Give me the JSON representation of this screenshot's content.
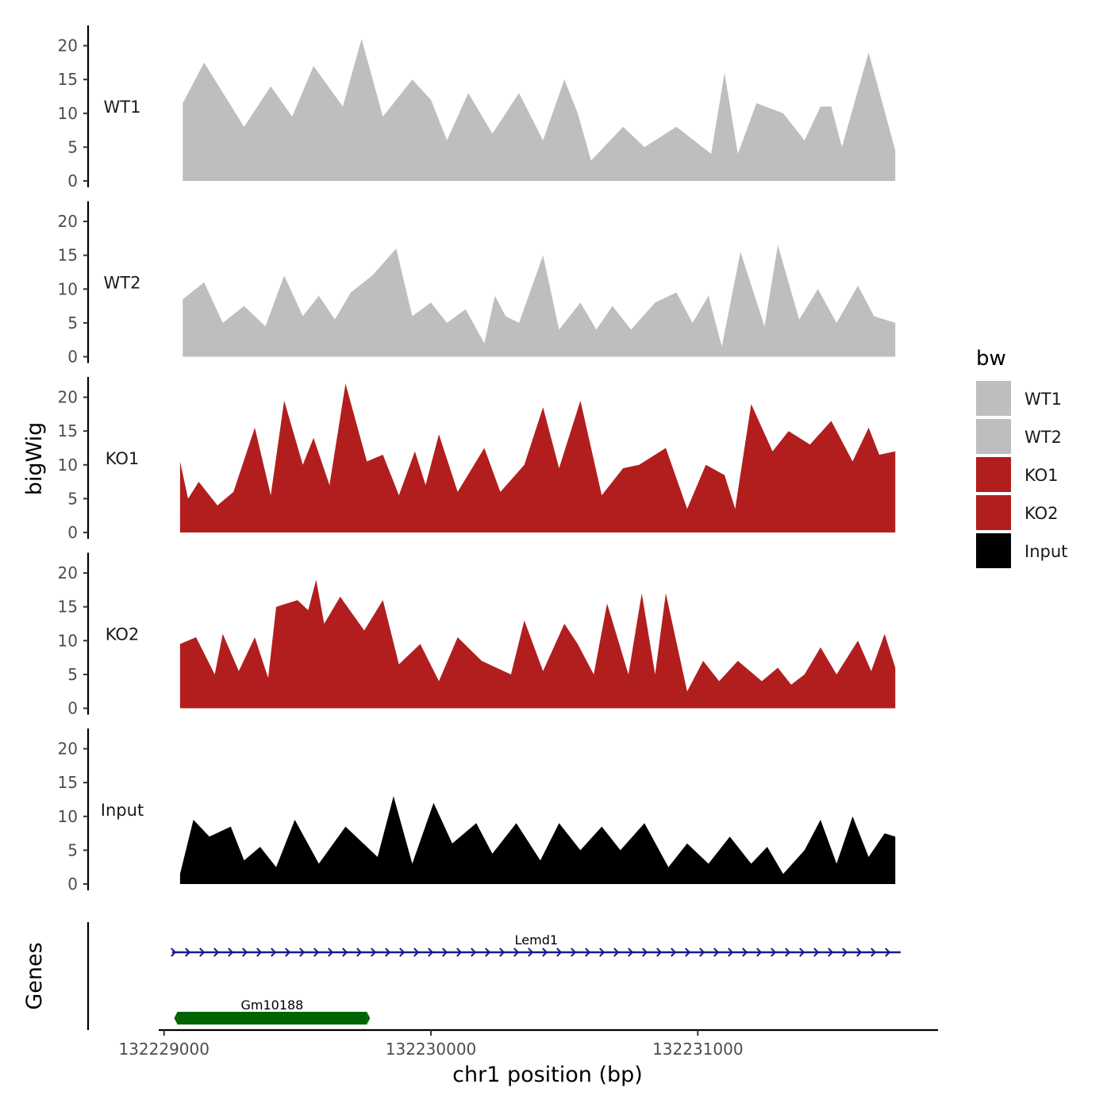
{
  "chart_data": {
    "type": "area",
    "ylabel": "bigWig",
    "xlabel": "chr1 position (bp)",
    "ylim": [
      0,
      23
    ],
    "y_ticks": [
      0,
      5,
      10,
      15,
      20
    ],
    "x_range": [
      132228980,
      132231900
    ],
    "x_ticks": [
      {
        "value": 132229000,
        "label": "132229000"
      },
      {
        "value": 132230000,
        "label": "132230000"
      },
      {
        "value": 132231000,
        "label": "132231000"
      }
    ],
    "legend": {
      "title": "bw",
      "position": "right",
      "entries": [
        {
          "label": "WT1",
          "color": "#bebebe"
        },
        {
          "label": "WT2",
          "color": "#bebebe"
        },
        {
          "label": "KO1",
          "color": "#b21e1e"
        },
        {
          "label": "KO2",
          "color": "#b21e1e"
        },
        {
          "label": "Input",
          "color": "#000000"
        }
      ]
    },
    "tracks": [
      {
        "name": "WT1",
        "color": "#bebebe",
        "x": [
          132229070,
          132229150,
          132229300,
          132229400,
          132229480,
          132229560,
          132229670,
          132229740,
          132229820,
          132229930,
          132230000,
          132230060,
          132230140,
          132230230,
          132230330,
          132230420,
          132230500,
          132230550,
          132230600,
          132230720,
          132230800,
          132230920,
          132231050,
          132231100,
          132231150,
          132231220,
          132231320,
          132231400,
          132231460,
          132231500,
          132231540,
          132231640,
          132231740
        ],
        "values": [
          11.5,
          17.5,
          8,
          14,
          9.5,
          17,
          11,
          21,
          9.5,
          15,
          12,
          6,
          13,
          7,
          13,
          6,
          15,
          10,
          3,
          8,
          5,
          8,
          4,
          16,
          4,
          11.5,
          10,
          6,
          11,
          11,
          5,
          19,
          4.5
        ]
      },
      {
        "name": "WT2",
        "color": "#bebebe",
        "x": [
          132229070,
          132229150,
          132229220,
          132229300,
          132229380,
          132229450,
          132229520,
          132229580,
          132229640,
          132229700,
          132229780,
          132229870,
          132229930,
          132230000,
          132230060,
          132230130,
          132230200,
          132230240,
          132230280,
          132230330,
          132230420,
          132230480,
          132230560,
          132230620,
          132230680,
          132230750,
          132230840,
          132230920,
          132230980,
          132231040,
          132231090,
          132231160,
          132231250,
          132231300,
          132231380,
          132231450,
          132231520,
          132231600,
          132231660,
          132231740
        ],
        "values": [
          8.5,
          11,
          5,
          7.5,
          4.5,
          12,
          6,
          9,
          5.5,
          9.5,
          12,
          16,
          6,
          8,
          5,
          7,
          2,
          9,
          6,
          5,
          15,
          4,
          8,
          4,
          7.5,
          4,
          8,
          9.5,
          5,
          9,
          1.5,
          15.5,
          4.5,
          16.5,
          5.5,
          10,
          5,
          10.5,
          6,
          5
        ]
      },
      {
        "name": "KO1",
        "color": "#b21e1e",
        "x": [
          132229060,
          132229090,
          132229130,
          132229200,
          132229260,
          132229340,
          132229400,
          132229450,
          132229520,
          132229560,
          132229620,
          132229680,
          132229760,
          132229820,
          132229880,
          132229940,
          132229980,
          132230030,
          132230100,
          132230200,
          132230260,
          132230350,
          132230420,
          132230480,
          132230560,
          132230640,
          132230720,
          132230780,
          132230880,
          132230960,
          132231030,
          132231100,
          132231140,
          132231200,
          132231280,
          132231340,
          132231420,
          132231500,
          132231580,
          132231640,
          132231680,
          132231740
        ],
        "values": [
          10.5,
          5,
          7.5,
          4,
          6,
          15.5,
          5.5,
          19.5,
          10,
          14,
          7,
          22,
          10.5,
          11.5,
          5.5,
          12,
          7,
          14.5,
          6,
          12.5,
          6,
          10,
          18.5,
          9.5,
          19.5,
          5.5,
          9.5,
          10,
          12.5,
          3.5,
          10,
          8.5,
          3.5,
          19,
          12,
          15,
          13,
          16.5,
          10.5,
          15.5,
          11.5,
          12
        ]
      },
      {
        "name": "KO2",
        "color": "#b21e1e",
        "x": [
          132229060,
          132229120,
          132229190,
          132229220,
          132229280,
          132229340,
          132229390,
          132229420,
          132229500,
          132229540,
          132229570,
          132229600,
          132229660,
          132229750,
          132229820,
          132229880,
          132229960,
          132230030,
          132230100,
          132230190,
          132230300,
          132230350,
          132230420,
          132230500,
          132230550,
          132230610,
          132230660,
          132230740,
          132230790,
          132230840,
          132230880,
          132230960,
          132231020,
          132231080,
          132231150,
          132231240,
          132231300,
          132231350,
          132231400,
          132231460,
          132231520,
          132231600,
          132231650,
          132231700,
          132231740
        ],
        "values": [
          9.5,
          10.5,
          5,
          11,
          5.5,
          10.5,
          4.5,
          15,
          16,
          14.5,
          19,
          12.5,
          16.5,
          11.5,
          16,
          6.5,
          9.5,
          4,
          10.5,
          7,
          5,
          13,
          5.5,
          12.5,
          9.5,
          5,
          15.5,
          5,
          17,
          5,
          17,
          2.5,
          7,
          4,
          7,
          4,
          6,
          3.5,
          5,
          9,
          5,
          10,
          5.5,
          11,
          6
        ]
      },
      {
        "name": "Input",
        "color": "#000000",
        "x": [
          132229060,
          132229110,
          132229170,
          132229250,
          132229300,
          132229360,
          132229420,
          132229490,
          132229580,
          132229680,
          132229800,
          132229860,
          132229930,
          132230010,
          132230080,
          132230170,
          132230230,
          132230320,
          132230410,
          132230480,
          132230560,
          132230640,
          132230710,
          132230800,
          132230890,
          132230960,
          132231040,
          132231120,
          132231200,
          132231260,
          132231320,
          132231400,
          132231460,
          132231520,
          132231580,
          132231640,
          132231700,
          132231740
        ],
        "values": [
          1.5,
          9.5,
          7,
          8.5,
          3.5,
          5.5,
          2.5,
          9.5,
          3,
          8.5,
          4,
          13,
          3,
          12,
          6,
          9,
          4.5,
          9,
          3.5,
          9,
          5,
          8.5,
          5,
          9,
          2.5,
          6,
          3,
          7,
          3,
          5.5,
          1.5,
          5,
          9.5,
          3,
          10,
          4,
          7.5,
          7
        ]
      }
    ],
    "genes": [
      {
        "name": "Lemd1",
        "start": 132229030,
        "end": 132231760,
        "strand": "+",
        "color": "#1a1a8c"
      },
      {
        "name": "Gm10188",
        "start": 132229050,
        "end": 132229760,
        "color": "#006400"
      }
    ],
    "genes_label": "Genes"
  }
}
